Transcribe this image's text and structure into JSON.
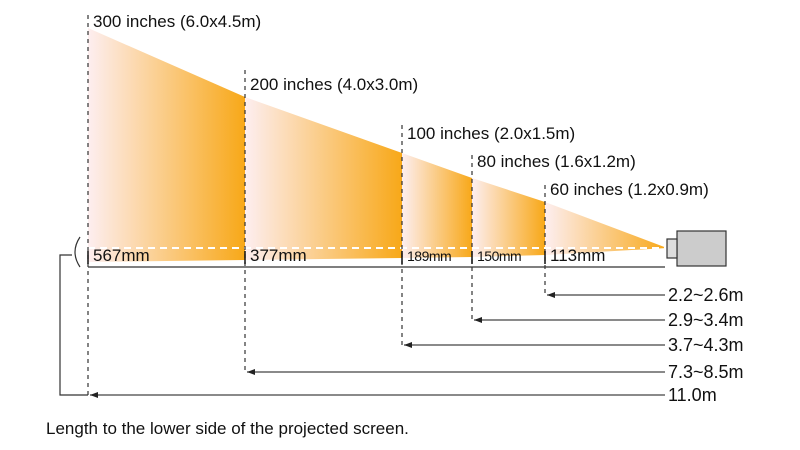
{
  "screens": [
    {
      "size_label": "300 inches (6.0x4.5m)",
      "height_label": "567mm",
      "distance_label": "11.0m"
    },
    {
      "size_label": "200 inches (4.0x3.0m)",
      "height_label": "377mm",
      "distance_label": "7.3~8.5m"
    },
    {
      "size_label": "100 inches (2.0x1.5m)",
      "height_label": "189mm",
      "distance_label": "3.7~4.3m"
    },
    {
      "size_label": "80 inches (1.6x1.2m)",
      "height_label": "150mm",
      "distance_label": "2.9~3.4m"
    },
    {
      "size_label": "60 inches (1.2x0.9m)",
      "height_label": "113mm",
      "distance_label": "2.2~2.6m"
    }
  ],
  "footnote": "Length to the lower side of the projected screen.",
  "colors": {
    "beam_light": "#fdeef0",
    "beam_dark": "#f8a818",
    "projector": "#cccccc",
    "line": "#333333"
  },
  "icons": {
    "projector": "projector-icon"
  }
}
